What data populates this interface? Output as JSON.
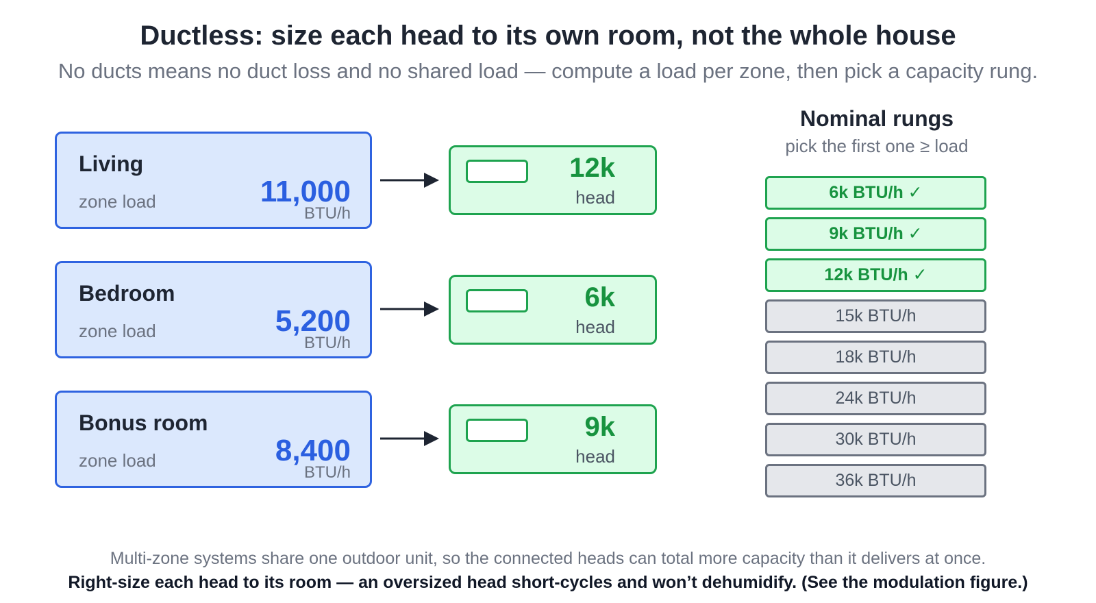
{
  "title": "Ductless: size each head to its own room, not the whole house",
  "subtitle": "No ducts means no duct loss and no shared load — compute a load per zone, then pick a capacity rung.",
  "zones": [
    {
      "name": "Living",
      "label": "zone load",
      "value": "11,000",
      "unit": "BTU/h",
      "head_value": "12k",
      "head_label": "head"
    },
    {
      "name": "Bedroom",
      "label": "zone load",
      "value": "5,200",
      "unit": "BTU/h",
      "head_value": "6k",
      "head_label": "head"
    },
    {
      "name": "Bonus room",
      "label": "zone load",
      "value": "8,400",
      "unit": "BTU/h",
      "head_value": "9k",
      "head_label": "head"
    }
  ],
  "rungs": {
    "title": "Nominal rungs",
    "subtitle": "pick the first one ≥ load",
    "items": [
      {
        "label": "6k BTU/h ✓",
        "used": true
      },
      {
        "label": "9k BTU/h ✓",
        "used": true
      },
      {
        "label": "12k BTU/h ✓",
        "used": true
      },
      {
        "label": "15k BTU/h",
        "used": false
      },
      {
        "label": "18k BTU/h",
        "used": false
      },
      {
        "label": "24k BTU/h",
        "used": false
      },
      {
        "label": "30k BTU/h",
        "used": false
      },
      {
        "label": "36k BTU/h",
        "used": false
      }
    ]
  },
  "footnote": "Multi-zone systems share one outdoor unit, so the connected heads can total more capacity than it delivers at once.",
  "takeaway": "Right-size each head to its room — an oversized head short-cycles and won’t dehumidify. (See the modulation figure.)",
  "colors": {
    "zone_fill": "#dbe8fd",
    "zone_stroke": "#2f63e0",
    "head_fill": "#dcfce7",
    "head_stroke": "#1ea34f",
    "rung_unused_fill": "#e5e7eb",
    "arrow": "#1e2532"
  }
}
